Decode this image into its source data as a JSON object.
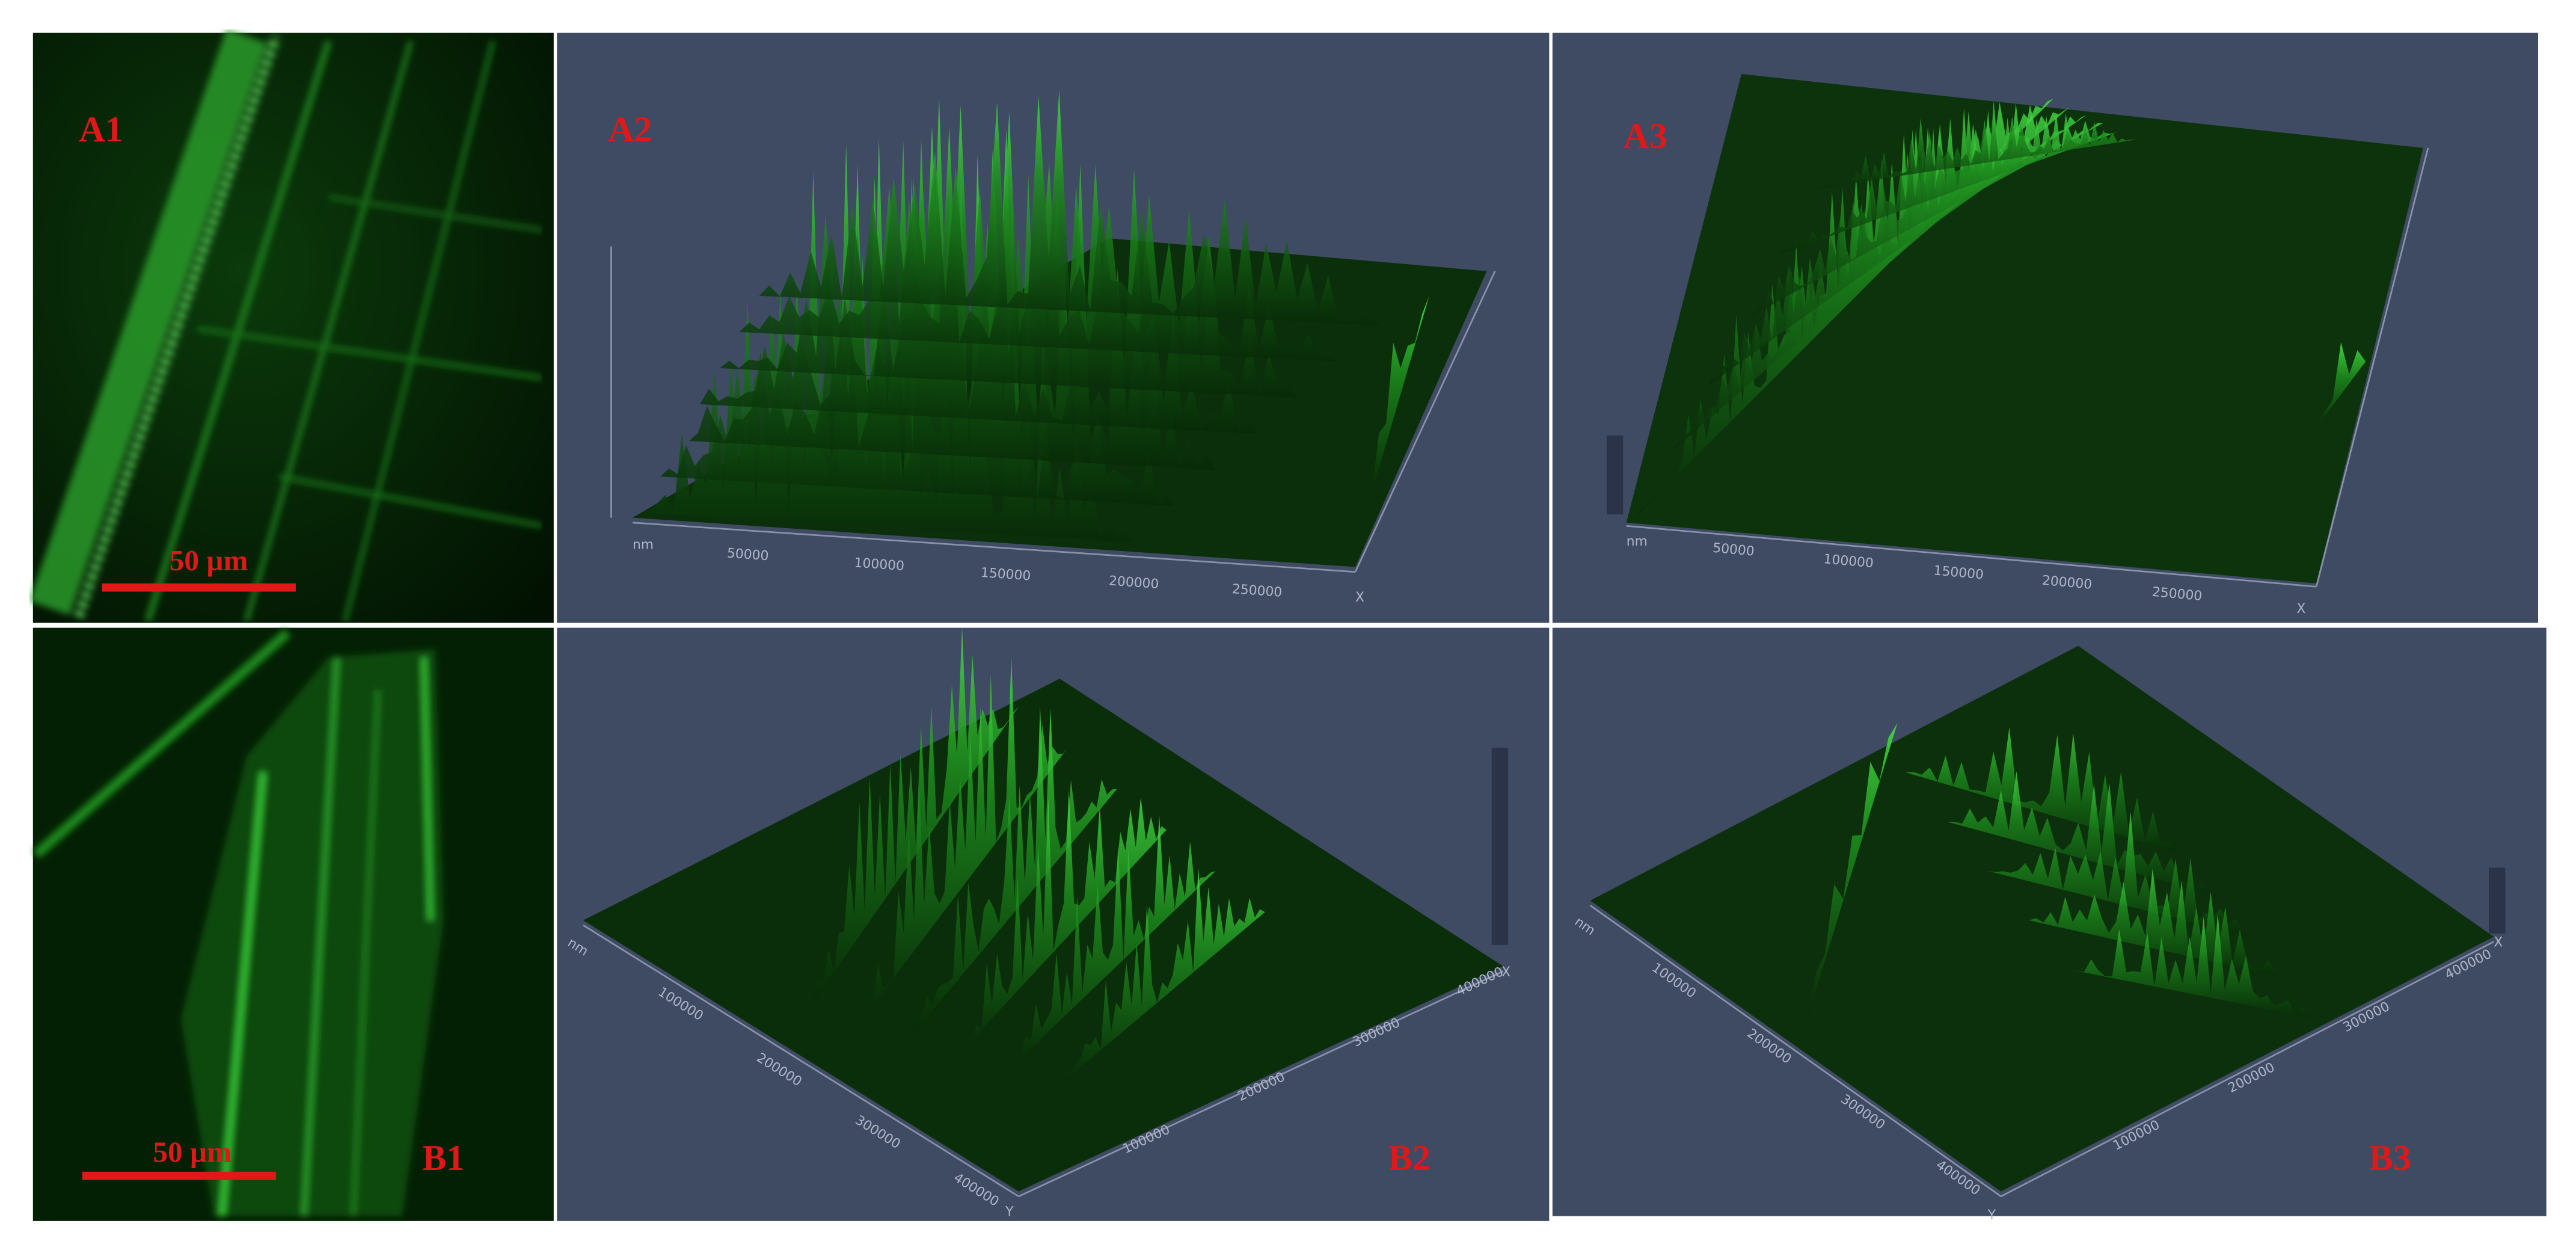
{
  "panels": [
    {
      "label": "A1",
      "scale_bar": "50 µm"
    },
    {
      "label": "A2",
      "x_axis": {
        "unit": "nm",
        "ticks": [
          "50000",
          "100000",
          "150000",
          "200000",
          "250000"
        ],
        "name": "X"
      }
    },
    {
      "label": "A3",
      "x_axis": {
        "unit": "nm",
        "ticks": [
          "50000",
          "100000",
          "150000",
          "200000",
          "250000"
        ],
        "name": "X"
      }
    },
    {
      "label": "B1",
      "scale_bar": "50 µm"
    },
    {
      "label": "B2",
      "y_axis": {
        "unit": "nm",
        "ticks": [
          "100000",
          "200000",
          "300000",
          "400000"
        ],
        "name": "Y"
      },
      "x_axis": {
        "ticks": [
          "100000",
          "200000",
          "300000",
          "400000"
        ],
        "name": "X"
      }
    },
    {
      "label": "B3",
      "y_axis": {
        "unit": "nm",
        "ticks": [
          "100000",
          "200000",
          "300000",
          "400000"
        ],
        "name": "Y"
      },
      "x_axis": {
        "ticks": [
          "100000",
          "200000",
          "300000",
          "400000"
        ],
        "name": "X"
      }
    }
  ]
}
